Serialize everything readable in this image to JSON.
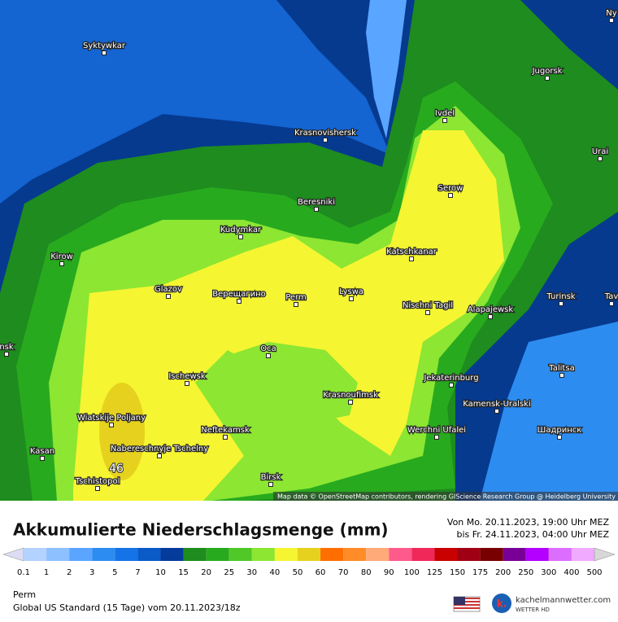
{
  "map": {
    "cities": [
      "Ny",
      "Syktywkar",
      "Jugorsk",
      "Ivdel",
      "Krasnovishersk",
      "Urai",
      "Serow",
      "Beresniki",
      "Kudymkar",
      "Kirow",
      "Katschkanar",
      "Glazov",
      "Верещагино",
      "Perm",
      "Lyswa",
      "Nischni Tagil",
      "Alapajewsk",
      "Turinsk",
      "Tav",
      "nsk",
      "Oca",
      "Talitsa",
      "Ischewsk",
      "Jekaterinburg",
      "Krasnoufimsk",
      "Kamensk-Uralski",
      "Wiatskije Poljany",
      "Neftekamsk",
      "Werchni Ufalei",
      "Шадринск",
      "Nabereschnyje Tschelny",
      "Kasan",
      "Tschistopol",
      "Birsk"
    ],
    "max_value": 46,
    "attribution": "Map data © OpenStreetMap contributors, rendering GIScience Research Group @ Heidelberg University"
  },
  "footer": {
    "title": "Akkumulierte Niederschlagsmenge (mm)",
    "from": "Von Mo. 20.11.2023, 19:00 Uhr MEZ",
    "to": "bis Fr. 24.11.2023, 04:00 Uhr MEZ",
    "scale_ticks": [
      0.1,
      1,
      2,
      3,
      5,
      7,
      10,
      15,
      20,
      25,
      30,
      40,
      50,
      60,
      70,
      80,
      90,
      100,
      125,
      150,
      175,
      200,
      250,
      300,
      400,
      500
    ],
    "scale_colors": [
      "#dcdcf5",
      "#b4d2ff",
      "#8cc0ff",
      "#5aa5ff",
      "#2d8cf0",
      "#1473e6",
      "#0a5ac8",
      "#053c9b",
      "#1e8c1e",
      "#28aa1e",
      "#50c828",
      "#8ce632",
      "#f5f532",
      "#e6d21e",
      "#ff6e00",
      "#ff8c28",
      "#ffaa78",
      "#ff5a8c",
      "#f0285a",
      "#c80000",
      "#a00014",
      "#780000",
      "#780096",
      "#b400ff",
      "#dc6eff",
      "#f0aaff",
      "#f5d7ff",
      "#d7d7d7"
    ],
    "location": "Perm",
    "model": "Global US Standard (15 Tage) vom  20.11.2023/18z",
    "brand": "kachelmannwetter.com",
    "brand_sub": "WETTER HD"
  }
}
